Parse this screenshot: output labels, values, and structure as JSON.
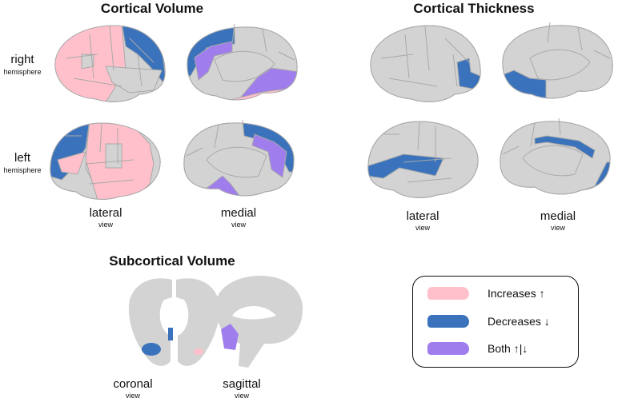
{
  "colors": {
    "increase": "#ffc0cb",
    "decrease": "#3a72bb",
    "both": "#a07ded",
    "cortex": "#d3d3d3",
    "outline": "#a9a9a9"
  },
  "cortical_volume": {
    "title": "Cortical Volume",
    "right": "right",
    "left": "left",
    "hemisphere": "hemisphere",
    "lateral": "lateral",
    "medial": "medial",
    "view": "view"
  },
  "cortical_thickness": {
    "title": "Cortical Thickness",
    "lateral": "lateral",
    "medial": "medial",
    "view": "view"
  },
  "subcortical_volume": {
    "title": "Subcortical Volume",
    "coronal": "coronal",
    "sagittal": "sagittal",
    "view": "view"
  },
  "legend": {
    "items": [
      {
        "label": "Increases ↑",
        "color": "#ffc0cb"
      },
      {
        "label": "Decreases ↓",
        "color": "#3a72bb"
      },
      {
        "label": "Both ↑|↓",
        "color": "#a07ded"
      }
    ]
  }
}
